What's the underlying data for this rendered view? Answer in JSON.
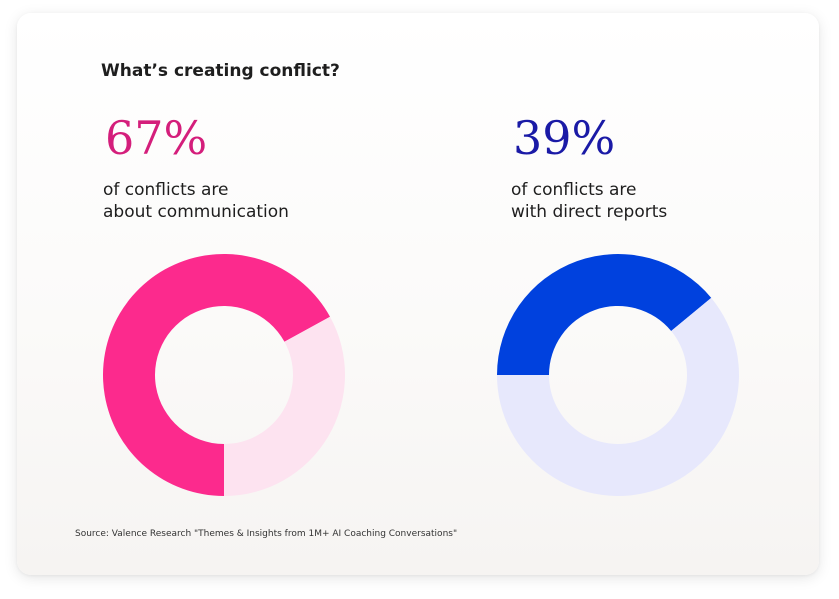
{
  "header": {
    "title": "What’s creating conflict?"
  },
  "stats": [
    {
      "value": "67%",
      "line1": "of conflicts are",
      "line2": "about communication"
    },
    {
      "value": "39%",
      "line1": "of conflicts are",
      "line2": "with direct reports"
    }
  ],
  "footer": {
    "source": "Source: Valence Research \"Themes & Insights from 1M+ AI Coaching Conversations\""
  },
  "chart_data": [
    {
      "type": "pie",
      "donut": true,
      "slices": [
        {
          "value": 67,
          "color": "#fc2a8d"
        },
        {
          "value": 33,
          "color": "#fde3f0"
        }
      ]
    },
    {
      "type": "pie",
      "donut": true,
      "slices": [
        {
          "value": 39,
          "color": "#0041de"
        },
        {
          "value": 61,
          "color": "#e7e8fc"
        }
      ]
    }
  ]
}
